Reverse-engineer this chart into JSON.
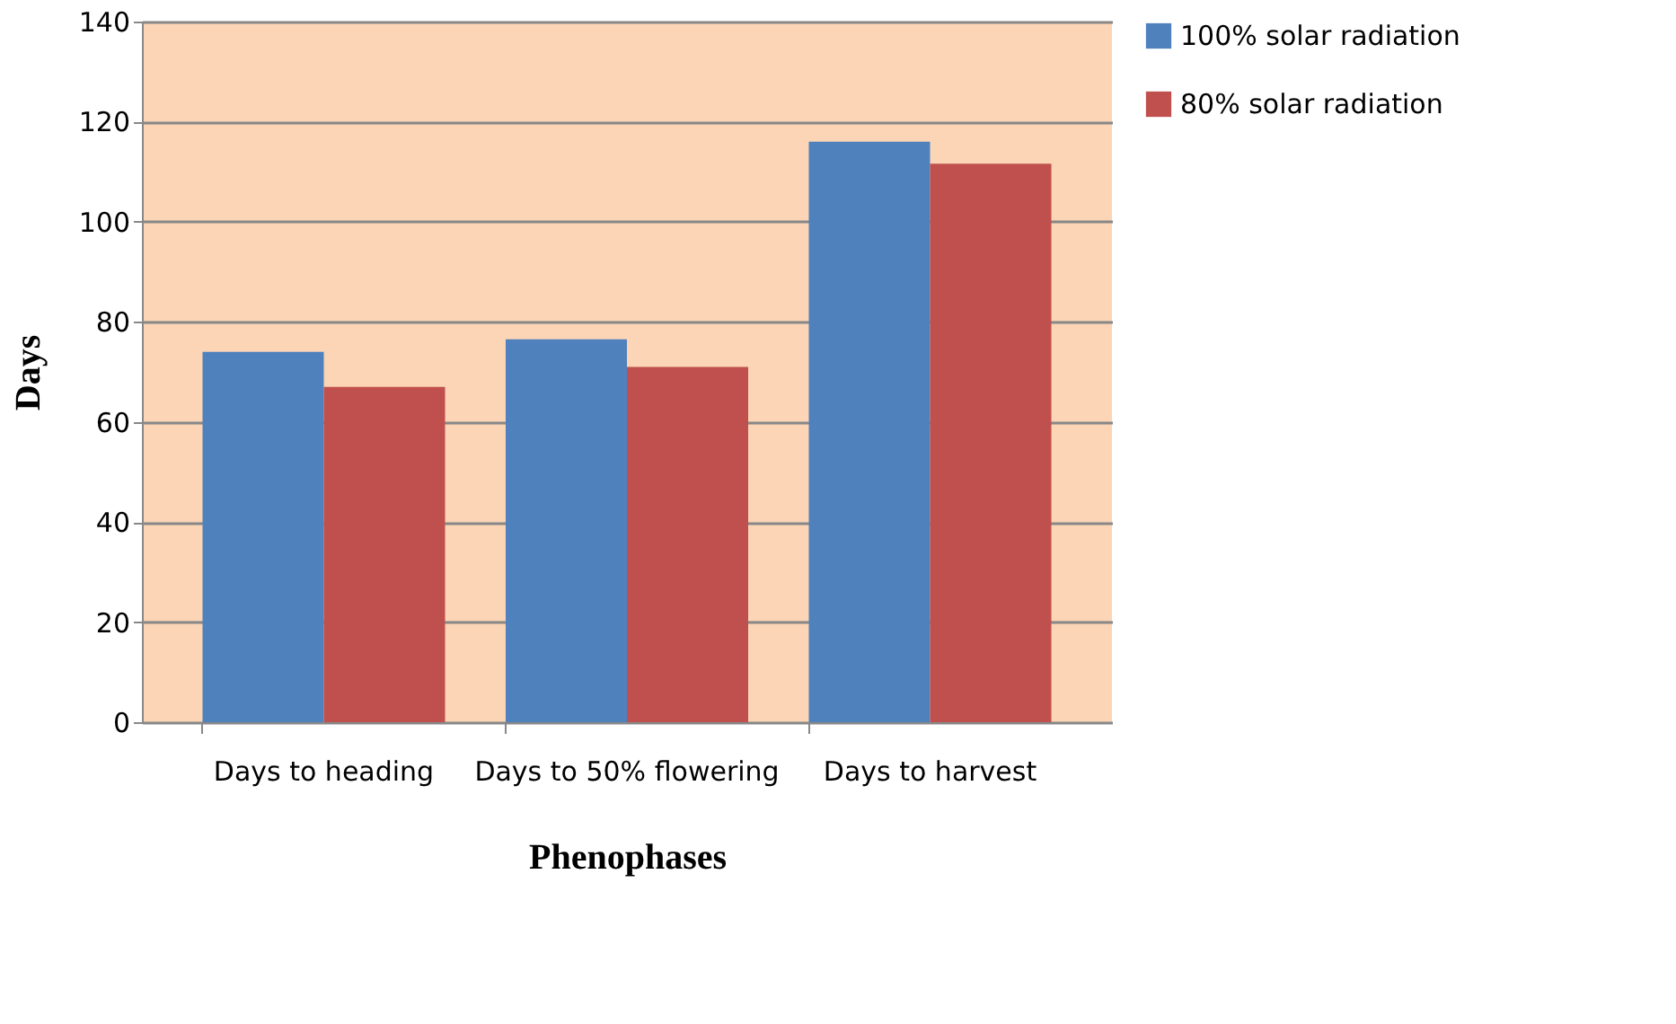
{
  "chart_data": {
    "type": "bar",
    "xlabel": "Phenophases",
    "ylabel": "Days",
    "categories": [
      "Days to heading",
      "Days to 50% flowering",
      "Days to harvest"
    ],
    "series": [
      {
        "name": "100% solar radiation",
        "color": "#4f81bd",
        "values": [
          74,
          76.5,
          116
        ]
      },
      {
        "name": "80% solar radiation",
        "color": "#c0504d",
        "values": [
          67,
          71,
          111.6
        ]
      }
    ],
    "ylim": [
      0,
      140
    ],
    "yticks": [
      0,
      20,
      40,
      60,
      80,
      100,
      120,
      140
    ],
    "grid": "y",
    "legend": "right"
  }
}
